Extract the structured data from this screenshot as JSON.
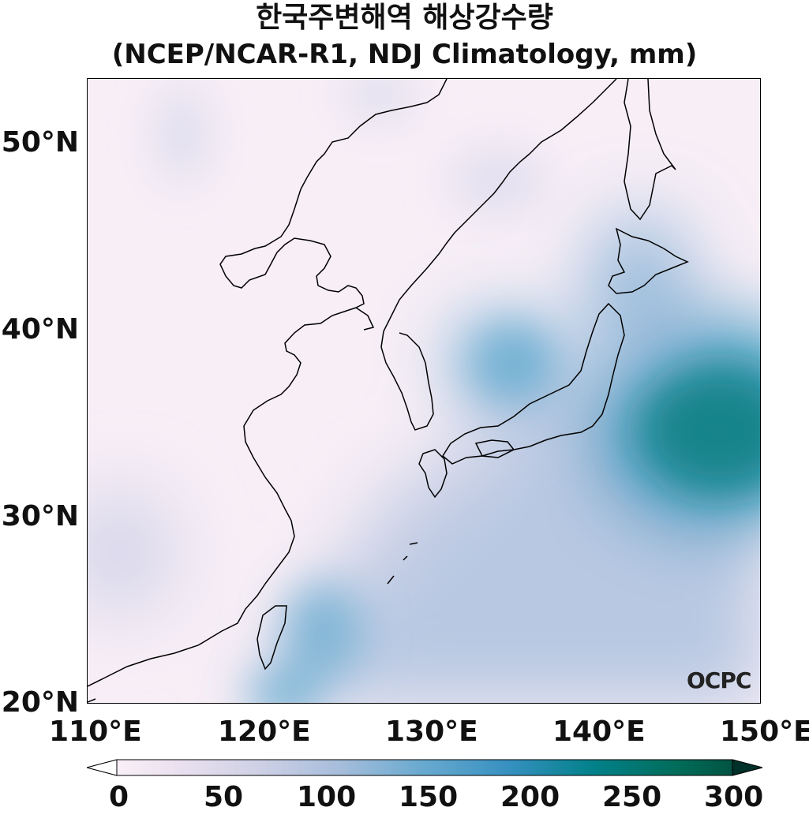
{
  "title_line1": "한국주변해역 해상강수량",
  "title_line2": "(NCEP/NCAR-R1, NDJ Climatology, mm)",
  "lat_labels": [
    "50°N",
    "40°N",
    "30°N",
    "20°N"
  ],
  "lon_labels": [
    "110°E",
    "120°E",
    "130°E",
    "140°E",
    "150°E"
  ],
  "colorbar_ticks": [
    "0",
    "50",
    "100",
    "150",
    "200",
    "250",
    "300"
  ],
  "colorbar_colors": [
    "#fff7fb",
    "#ece2f0",
    "#d0d1e6",
    "#a6bddb",
    "#67a9cf",
    "#3690c0",
    "#02818a",
    "#016c59",
    "#014636"
  ],
  "logo": "OCPC"
}
